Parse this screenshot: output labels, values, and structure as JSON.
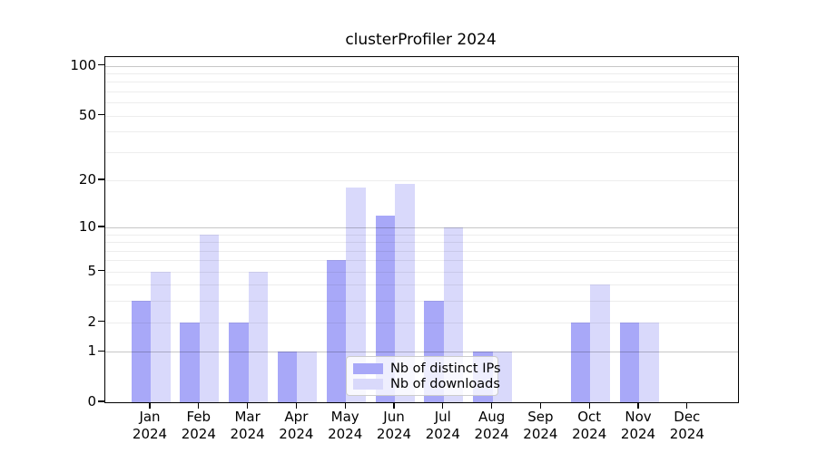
{
  "chart_data": {
    "type": "bar",
    "title": "clusterProfiler 2024",
    "year_label": "2024",
    "categories": [
      "Jan",
      "Feb",
      "Mar",
      "Apr",
      "May",
      "Jun",
      "Jul",
      "Aug",
      "Sep",
      "Oct",
      "Nov",
      "Dec"
    ],
    "series": [
      {
        "name": "Nb of distinct IPs",
        "color": "#a8a8f8",
        "values": [
          3,
          2,
          2,
          1,
          6,
          12,
          3,
          1,
          0,
          2,
          2,
          0
        ]
      },
      {
        "name": "Nb of downloads",
        "color": "#d9d9fb",
        "values": [
          5,
          9,
          5,
          1,
          18,
          19,
          10,
          1,
          0,
          4,
          2,
          0
        ]
      }
    ],
    "yticks": [
      0,
      1,
      2,
      5,
      10,
      20,
      50,
      100
    ],
    "major_gridlines": [
      1,
      10,
      100
    ],
    "minor_gridlines": [
      2,
      3,
      4,
      5,
      6,
      7,
      8,
      9,
      20,
      30,
      40,
      50,
      60,
      70,
      80,
      90
    ],
    "scale": "log10(value+1)",
    "ylim": [
      0,
      100
    ],
    "grid": "on",
    "legend_position": "bottom-center"
  }
}
